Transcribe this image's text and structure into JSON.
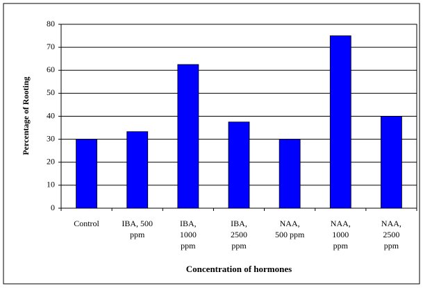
{
  "chart_data": {
    "type": "bar",
    "x_label": "Concentration of hormones",
    "y_label": "Percentage of Rooting",
    "categories": [
      "Control",
      "IBA, 500\nppm",
      "IBA,\n1000\nppm",
      "IBA,\n2500\nppm",
      "NAA,\n500 ppm",
      "NAA,\n1000\nppm",
      "NAA,\n2500\nppm"
    ],
    "values": [
      30,
      33.3,
      62.5,
      37.5,
      30,
      75,
      40
    ],
    "color": "#0000ff",
    "ylim": [
      0,
      80
    ],
    "yticks": [
      0,
      10,
      20,
      30,
      40,
      50,
      60,
      70,
      80
    ],
    "grid": true
  }
}
